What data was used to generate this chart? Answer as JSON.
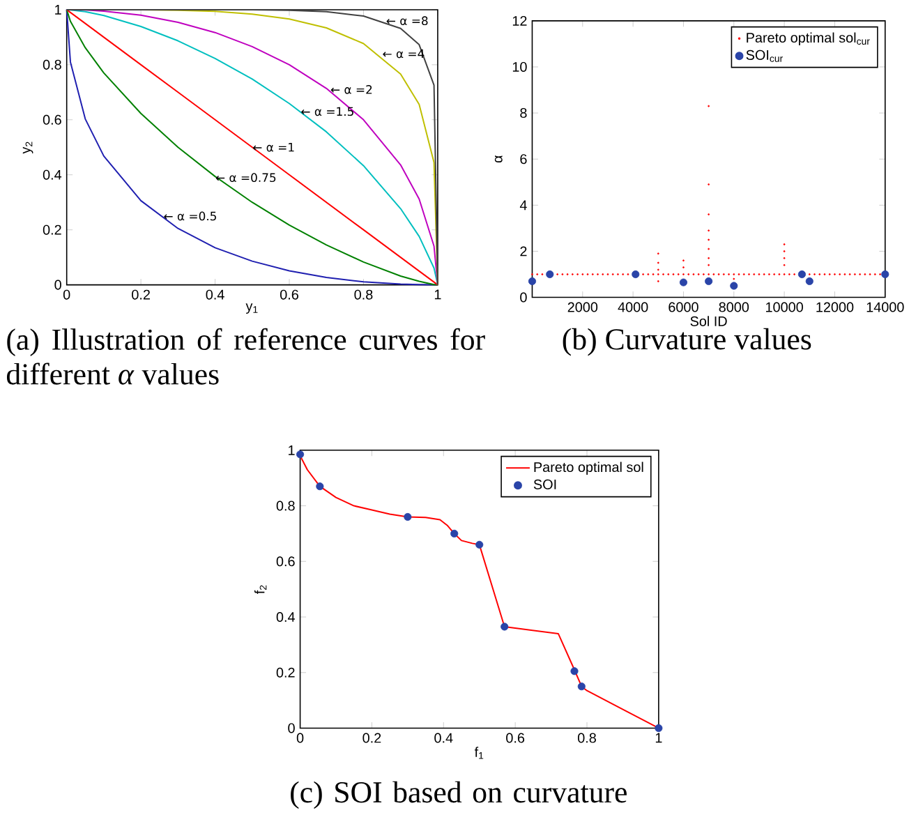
{
  "chart_data": [
    {
      "type": "line",
      "xlabel": "y$_{1}$",
      "ylabel": "y$_{2}$",
      "xlim": [
        0,
        1
      ],
      "ylim": [
        0,
        1
      ],
      "xticks": [
        0,
        0.2,
        0.4,
        0.6,
        0.8,
        1
      ],
      "yticks": [
        0,
        0.2,
        0.4,
        0.6,
        0.8,
        1
      ],
      "marker": "none",
      "x": [
        0,
        0.01,
        0.05,
        0.1,
        0.2,
        0.3,
        0.4,
        0.5,
        0.6,
        0.7,
        0.8,
        0.9,
        0.95,
        0.99,
        1
      ],
      "series": [
        {
          "color": "#1f1fb0",
          "values": [
            1,
            0.81,
            0.603,
            0.468,
            0.306,
            0.205,
            0.135,
            0.086,
            0.051,
            0.027,
            0.011,
            0.003,
            0.001,
            0,
            0
          ]
        },
        {
          "color": "#008000",
          "values": [
            1,
            0.958,
            0.862,
            0.77,
            0.623,
            0.5,
            0.394,
            0.3,
            0.217,
            0.145,
            0.083,
            0.032,
            0.013,
            0.001,
            0
          ]
        },
        {
          "color": "#ff0000",
          "values": [
            1,
            0.99,
            0.95,
            0.9,
            0.8,
            0.7,
            0.6,
            0.5,
            0.4,
            0.3,
            0.2,
            0.1,
            0.05,
            0.01,
            0
          ]
        },
        {
          "color": "#00bfbf",
          "values": [
            1,
            0.999,
            0.993,
            0.979,
            0.939,
            0.887,
            0.823,
            0.748,
            0.659,
            0.556,
            0.433,
            0.277,
            0.176,
            0.061,
            0
          ]
        },
        {
          "color": "#bf00bf",
          "values": [
            1,
            1,
            0.999,
            0.995,
            0.98,
            0.954,
            0.917,
            0.866,
            0.8,
            0.714,
            0.6,
            0.436,
            0.312,
            0.141,
            0
          ]
        },
        {
          "color": "#bfbf00",
          "values": [
            null,
            null,
            null,
            1,
            1,
            0.998,
            0.994,
            0.984,
            0.966,
            0.934,
            0.877,
            0.766,
            0.656,
            0.445,
            0
          ]
        },
        {
          "color": "#404040",
          "values": [
            1,
            1,
            1,
            1,
            1,
            1,
            1,
            1,
            0.998,
            0.993,
            0.977,
            0.932,
            0.873,
            0.726,
            0
          ]
        }
      ],
      "annotations": [
        {
          "text": "← α =8",
          "x": 0.86,
          "y": 0.96
        },
        {
          "text": "← α =4",
          "x": 0.85,
          "y": 0.84
        },
        {
          "text": "← α =2",
          "x": 0.71,
          "y": 0.71
        },
        {
          "text": "← α =1.5",
          "x": 0.63,
          "y": 0.63
        },
        {
          "text": "← α =1",
          "x": 0.5,
          "y": 0.5
        },
        {
          "text": "← α =0.75",
          "x": 0.4,
          "y": 0.39
        },
        {
          "text": "← α =0.5",
          "x": 0.26,
          "y": 0.25
        },
        "(a) Illustration of reference curves for different *α* values"
      ]
    },
    {
      "type": "scatter",
      "xlabel": "Sol ID",
      "ylabel": "α",
      "xlim": [
        0,
        14000
      ],
      "ylim": [
        0,
        12
      ],
      "xticks": [
        2000,
        4000,
        6000,
        8000,
        10000,
        12000,
        14000
      ],
      "yticks": [
        0,
        2,
        4,
        6,
        8,
        10,
        12
      ],
      "marker": "circle",
      "legend": "top right",
      "series": [
        {
          "name": "Pareto optimal sol$_{cur}$",
          "color": "#ff0000",
          "x": [
            0,
            200,
            400,
            1000,
            1200,
            1400,
            1600,
            1800,
            2000,
            2200,
            2400,
            2600,
            2800,
            3000,
            3200,
            3400,
            3600,
            3800,
            4400,
            4600,
            4800,
            5000,
            5200,
            5400,
            5600,
            5800,
            6000,
            6200,
            6400,
            6600,
            6800,
            7000,
            7200,
            7400,
            7600,
            7800,
            8000,
            8200,
            8400,
            8600,
            8800,
            9000,
            9200,
            9400,
            9600,
            9800,
            10000,
            10200,
            10400,
            11000,
            11200,
            11400,
            11600,
            11800,
            12000,
            12200,
            12400,
            12600,
            12800,
            13000,
            13200,
            13400,
            13600,
            13800,
            5000,
            5000,
            5000,
            5000,
            6000,
            6000,
            7000,
            7000,
            7000,
            7000,
            7000,
            7000,
            7000,
            7000,
            8000,
            10000,
            10000,
            10000,
            10000
          ],
          "values": [
            1,
            1,
            1,
            1,
            1,
            1,
            1,
            1,
            1,
            1,
            1,
            1,
            1,
            1,
            1,
            1,
            1,
            1,
            1,
            1,
            1,
            1,
            1,
            1,
            1,
            1,
            1,
            1,
            1,
            1,
            1,
            1,
            1,
            1,
            1,
            1,
            1,
            1,
            1,
            1,
            1,
            1,
            1,
            1,
            1,
            1,
            1,
            1,
            1,
            1,
            1,
            1,
            1,
            1,
            1,
            1,
            1,
            1,
            1,
            1,
            1,
            1,
            1,
            1,
            1.9,
            1.5,
            1.2,
            0.7,
            1.6,
            1.3,
            8.3,
            4.9,
            3.6,
            2.9,
            2.5,
            2.1,
            1.7,
            1.4,
            0.8,
            2.3,
            2.0,
            1.7,
            1.4
          ]
        },
        {
          "name": "SOI$_{cur}$",
          "color": "#2a44a8",
          "x": [
            0,
            700,
            4100,
            6000,
            7000,
            8000,
            10700,
            11000,
            14000
          ],
          "values": [
            0.7,
            1,
            1,
            0.65,
            0.7,
            0.5,
            1,
            0.7,
            1
          ]
        }
      ],
      "annotations": [
        "(b) Curvature values"
      ]
    },
    {
      "type": "scatter",
      "xlabel": "f$_{1}$",
      "ylabel": "f$_{2}$",
      "xlim": [
        0,
        1
      ],
      "ylim": [
        0,
        1
      ],
      "xticks": [
        0,
        0.2,
        0.4,
        0.6,
        0.8,
        1
      ],
      "yticks": [
        0,
        0.2,
        0.4,
        0.6,
        0.8,
        1
      ],
      "legend": "top right",
      "series": [
        {
          "name": "Pareto optimal sol",
          "type": "line",
          "marker": "none",
          "color": "#ff0000",
          "x": [
            0,
            0.02,
            0.055,
            0.1,
            0.15,
            0.2,
            0.25,
            0.3,
            0.35,
            0.39,
            0.41,
            0.43,
            0.45,
            0.48,
            0.5,
            0.57,
            0.6,
            0.72,
            0.765,
            0.785,
            0.8,
            1
          ],
          "values": [
            0.98,
            0.93,
            0.87,
            0.83,
            0.8,
            0.785,
            0.77,
            0.76,
            0.758,
            0.75,
            0.73,
            0.7,
            0.675,
            0.665,
            0.66,
            0.365,
            0.36,
            0.34,
            0.21,
            0.15,
            0.135,
            0
          ]
        },
        {
          "name": "SOI",
          "marker": "circle",
          "color": "#2a44a8",
          "x": [
            0,
            0.055,
            0.3,
            0.43,
            0.5,
            0.57,
            0.765,
            0.785,
            1
          ],
          "values": [
            0.985,
            0.87,
            0.76,
            0.7,
            0.66,
            0.365,
            0.205,
            0.15,
            0
          ]
        }
      ],
      "annotations": [
        "(c) SOI based on curvature"
      ]
    }
  ]
}
